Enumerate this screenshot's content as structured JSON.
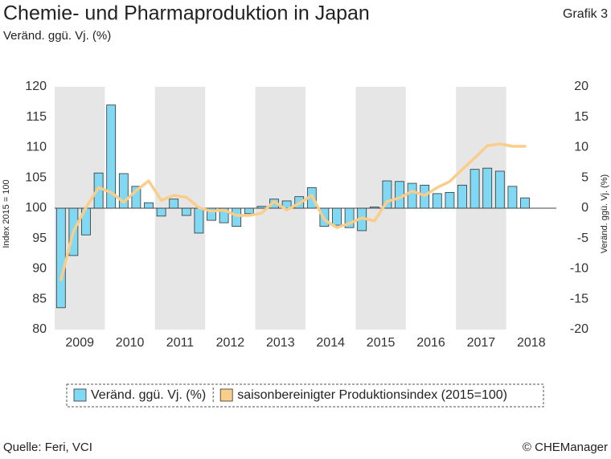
{
  "chart_data": {
    "type": "bar",
    "title": "Chemie- und Pharmaproduktion in Japan",
    "subtitle": "Veränd. ggü. Vj. (%)",
    "label": "Grafik 3",
    "ylabel": "Index 2015 = 100",
    "y2label": "Veränd. ggü. Vj. (%)",
    "source": "Quelle: Feri, VCI",
    "credit": "© CHEManager",
    "categories": [
      "2009",
      null,
      null,
      null,
      "2010",
      null,
      null,
      null,
      "2011",
      null,
      null,
      null,
      "2012",
      null,
      null,
      null,
      "2013",
      null,
      null,
      null,
      "2014",
      null,
      null,
      null,
      "2015",
      null,
      null,
      null,
      "2016",
      null,
      null,
      null,
      "2017",
      null,
      null,
      null,
      "2018",
      null
    ],
    "series": [
      {
        "name": "Veränd. ggü. Vj. (%)",
        "type": "bar",
        "axis": "y2",
        "color": "#80d8f2",
        "values": [
          -16.4,
          -7.8,
          -4.4,
          5.8,
          17,
          5.7,
          3.6,
          0.9,
          -1.3,
          1.5,
          -1.2,
          -4.1,
          -2.0,
          -2.4,
          -3.0,
          -0.9,
          0.3,
          1.5,
          1.2,
          1.9,
          3.4,
          -3.0,
          -2.8,
          -3.2,
          -3.7,
          0.2,
          4.5,
          4.4,
          4.1,
          3.8,
          2.4,
          2.6,
          3.8,
          6.4,
          6.6,
          6.1,
          3.6,
          1.7
        ]
      },
      {
        "name": "saisonbereinigter Produktionsindex (2015=100)",
        "type": "line",
        "axis": "y",
        "color": "#f9cd8a",
        "values": [
          88.2,
          96.2,
          100.1,
          103.4,
          102.6,
          101.0,
          102.9,
          104.5,
          101.3,
          102.1,
          101.8,
          100.1,
          99.5,
          99.7,
          98.8,
          98.8,
          99.2,
          101.1,
          99.7,
          100.8,
          102.1,
          98.1,
          96.8,
          97.5,
          98.4,
          97.9,
          101.1,
          101.7,
          102.8,
          102.1,
          103.4,
          104.4,
          106.4,
          108.3,
          110.3,
          110.6,
          110.2,
          110.2
        ]
      }
    ],
    "ylim": [
      80,
      120
    ],
    "yticks": [
      80,
      85,
      90,
      95,
      100,
      105,
      110,
      115,
      120
    ],
    "y2lim": [
      -20,
      20
    ],
    "y2ticks": [
      -20,
      -15,
      -10,
      -5,
      0,
      5,
      10,
      15,
      20
    ],
    "grid": false,
    "legend": "bottom"
  }
}
